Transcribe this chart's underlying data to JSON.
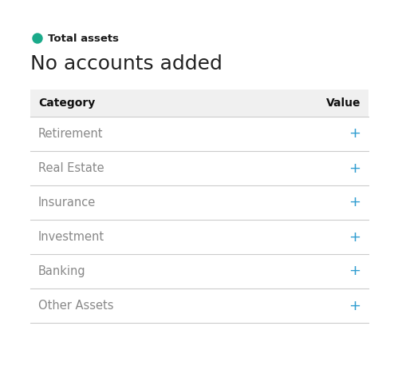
{
  "title_label": "Total assets",
  "subtitle": "No accounts added",
  "dot_color": "#1aaa8a",
  "title_label_color": "#1a1a1a",
  "subtitle_color": "#222222",
  "header_bg_color": "#f0f0f0",
  "header_category_text": "Category",
  "header_value_text": "Value",
  "header_text_color": "#111111",
  "row_category_color": "#888888",
  "plus_color": "#2e9cd0",
  "divider_color": "#cccccc",
  "rows": [
    "Retirement",
    "Real Estate",
    "Insurance",
    "Investment",
    "Banking",
    "Other Assets"
  ],
  "background_color": "#ffffff",
  "fig_width": 4.94,
  "fig_height": 4.58,
  "dpi": 100
}
